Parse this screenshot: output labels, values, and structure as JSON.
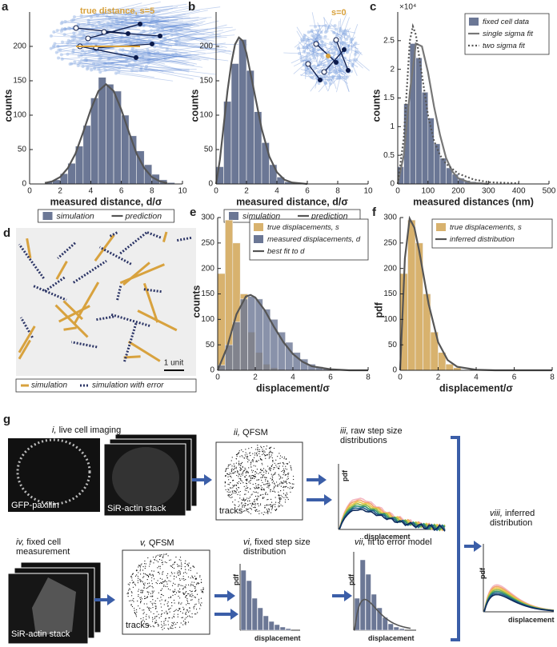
{
  "chart_data": [
    {
      "type": "histogram",
      "panel": "a",
      "annotation": "true distance, s=5",
      "xlabel": "measured distance, d/σ",
      "ylabel": "counts",
      "xlim": [
        0,
        10
      ],
      "xticks": [
        0,
        2,
        4,
        6,
        8,
        10
      ],
      "ylim": [
        0,
        250
      ],
      "yticks": [
        0,
        50,
        100,
        150,
        200
      ],
      "legend": "below",
      "bins": [
        1,
        1.5,
        2,
        2.5,
        3,
        3.5,
        4,
        4.5,
        5,
        5.5,
        6,
        6.5,
        7,
        7.5,
        8,
        8.5,
        9,
        9.5
      ],
      "series": [
        {
          "name": "simulation",
          "color": "#6b7795",
          "values": [
            3,
            6,
            15,
            30,
            55,
            85,
            125,
            155,
            145,
            135,
            100,
            70,
            48,
            28,
            14,
            6,
            2
          ]
        }
      ],
      "lines": [
        {
          "name": "prediction",
          "color": "#555555",
          "dash": false,
          "x": [
            1,
            1.5,
            2,
            2.5,
            3,
            3.5,
            4,
            4.5,
            5,
            5.5,
            6,
            6.5,
            7,
            7.5,
            8,
            8.5,
            9
          ],
          "values": [
            1.3,
            3.9,
            10,
            23,
            44,
            75,
            108,
            135,
            145,
            135,
            108,
            75,
            44,
            23,
            10,
            3.9,
            1.3
          ]
        }
      ]
    },
    {
      "type": "histogram",
      "panel": "b",
      "annotation": "s=0",
      "xlabel": "measured distance, d/σ",
      "ylabel": "counts",
      "xlim": [
        0,
        10
      ],
      "xticks": [
        0,
        2,
        4,
        6,
        8,
        10
      ],
      "ylim": [
        0,
        250
      ],
      "yticks": [
        0,
        50,
        100,
        150,
        200
      ],
      "legend": "below",
      "bins": [
        0,
        0.5,
        1,
        1.5,
        2,
        2.5,
        3,
        3.5,
        4,
        4.5,
        5
      ],
      "series": [
        {
          "name": "simulation",
          "color": "#6b7795",
          "values": [
            25,
            120,
            175,
            210,
            165,
            105,
            60,
            28,
            10,
            3
          ]
        }
      ],
      "lines": [
        {
          "name": "prediction",
          "color": "#555555",
          "dash": false,
          "x": [
            0,
            0.25,
            0.5,
            0.75,
            1,
            1.25,
            1.5,
            1.75,
            2,
            2.5,
            3,
            3.5,
            4,
            4.5,
            5,
            6
          ],
          "values": [
            0,
            35,
            85,
            135,
            175,
            203,
            213,
            208,
            190,
            135,
            80,
            40,
            17,
            6,
            2,
            0
          ]
        }
      ]
    },
    {
      "type": "histogram",
      "panel": "c",
      "y_exponent": "×10⁴",
      "xlabel": "measured distances (nm)",
      "ylabel": "counts",
      "xlim": [
        0,
        500
      ],
      "xticks": [
        0,
        100,
        200,
        300,
        400,
        500
      ],
      "ylim": [
        0,
        3
      ],
      "yticks": [
        0,
        0.5,
        1,
        1.5,
        2,
        2.5
      ],
      "legend": "upper right",
      "bins": [
        0,
        20,
        40,
        60,
        80,
        100,
        120,
        140,
        160,
        180,
        200,
        220,
        240,
        260,
        280,
        300
      ],
      "series": [
        {
          "name": "fixed cell data",
          "color": "#6b7795",
          "values": [
            0.3,
            1.4,
            2.45,
            2.2,
            1.6,
            1.15,
            0.7,
            0.45,
            0.28,
            0.17,
            0.1,
            0.06,
            0.04,
            0.03,
            0.02
          ]
        }
      ],
      "lines": [
        {
          "name": "single sigma fit",
          "color": "#777777",
          "dash": false,
          "x": [
            0,
            20,
            40,
            60,
            80,
            100,
            120,
            140,
            160,
            180,
            200,
            240,
            300
          ],
          "values": [
            0,
            0.5,
            1.6,
            2.45,
            2.4,
            1.95,
            1.35,
            0.85,
            0.45,
            0.22,
            0.1,
            0.02,
            0
          ]
        },
        {
          "name": "two sigma fit",
          "color": "#555555",
          "dash": true,
          "x": [
            0,
            20,
            40,
            50,
            60,
            80,
            100,
            120,
            140,
            160,
            200,
            250,
            300,
            400
          ],
          "values": [
            0,
            0.8,
            2.5,
            2.75,
            2.6,
            1.9,
            1.2,
            0.75,
            0.5,
            0.35,
            0.18,
            0.08,
            0.03,
            0.01
          ]
        }
      ]
    },
    {
      "type": "histogram",
      "panel": "e",
      "xlabel": "displacement/σ",
      "ylabel": "counts",
      "xlim": [
        0,
        8
      ],
      "xticks": [
        0,
        2,
        4,
        6,
        8
      ],
      "ylim": [
        0,
        300
      ],
      "yticks": [
        0,
        50,
        100,
        150,
        200,
        250,
        300
      ],
      "legend": "upper right",
      "bins": [
        0,
        0.4,
        0.8,
        1.2,
        1.6,
        2,
        2.4,
        2.8,
        3.2,
        3.6,
        4,
        4.4,
        4.8,
        5.2,
        5.6,
        6,
        6.4
      ],
      "series": [
        {
          "name": "true displacements, s",
          "color": "#d8b26e",
          "values": [
            190,
            295,
            250,
            150,
            75,
            35,
            12,
            5,
            2,
            0,
            0,
            0,
            0,
            0,
            0,
            0
          ]
        },
        {
          "name": "measured displacements, d",
          "color": "#6b7795",
          "values": [
            10,
            50,
            95,
            140,
            145,
            140,
            120,
            100,
            75,
            55,
            35,
            22,
            12,
            7,
            4,
            2
          ]
        }
      ],
      "lines": [
        {
          "name": "best fit to d",
          "color": "#555555",
          "dash": false,
          "x": [
            0,
            0.5,
            1,
            1.5,
            1.75,
            2,
            2.5,
            3,
            3.5,
            4,
            4.5,
            5,
            6,
            7,
            8
          ],
          "values": [
            0,
            45,
            110,
            145,
            148,
            143,
            118,
            85,
            55,
            32,
            17,
            8,
            2,
            0,
            0
          ]
        }
      ]
    },
    {
      "type": "histogram",
      "panel": "f",
      "xlabel": "displacement/σ",
      "ylabel": "pdf",
      "xlim": [
        0,
        8
      ],
      "xticks": [
        0,
        2,
        4,
        6,
        8
      ],
      "ylim": [
        0,
        300
      ],
      "yticks": [
        0,
        50,
        100,
        150,
        200,
        250,
        300
      ],
      "legend": "upper right",
      "bins": [
        0,
        0.4,
        0.8,
        1.2,
        1.6,
        2,
        2.4,
        2.8,
        3.2
      ],
      "series": [
        {
          "name": "true displacements, s",
          "color": "#d8b26e",
          "values": [
            190,
            295,
            250,
            150,
            75,
            35,
            12,
            5
          ]
        }
      ],
      "lines": [
        {
          "name": "inferred distribution",
          "color": "#555555",
          "dash": false,
          "x": [
            0,
            0.25,
            0.5,
            0.75,
            1,
            1.5,
            2,
            2.5,
            3,
            4,
            5,
            8
          ],
          "values": [
            0,
            220,
            298,
            280,
            235,
            130,
            55,
            20,
            7,
            1,
            0,
            0
          ]
        }
      ]
    }
  ],
  "panel_d": {
    "label": "d",
    "legend": [
      "simulation",
      "simulation with error"
    ],
    "scale": "1 unit"
  },
  "panel_g": {
    "label": "g",
    "steps": [
      {
        "numeral": "i,",
        "title": "live cell imaging",
        "images": [
          "GFP-paxillin",
          "SiR-actin stack"
        ]
      },
      {
        "numeral": "ii,",
        "title": "QFSM",
        "inset": "tracks"
      },
      {
        "numeral": "iii,",
        "title": "raw step size distributions",
        "ylabel": "pdf",
        "xlabel": "displacement"
      },
      {
        "numeral": "iv,",
        "title": "fixed cell measurement",
        "images": [
          "SiR-actin stack"
        ]
      },
      {
        "numeral": "v,",
        "title": "QFSM",
        "inset": "tracks"
      },
      {
        "numeral": "vi,",
        "title": "fixed step size distribution",
        "ylabel": "pdf",
        "xlabel": "displacement"
      },
      {
        "numeral": "vii,",
        "title": "fit to error model",
        "ylabel": "pdf",
        "xlabel": "displacement"
      },
      {
        "numeral": "viii,",
        "title": "inferred distribution",
        "ylabel": "pdf",
        "xlabel": "displacement"
      }
    ]
  }
}
